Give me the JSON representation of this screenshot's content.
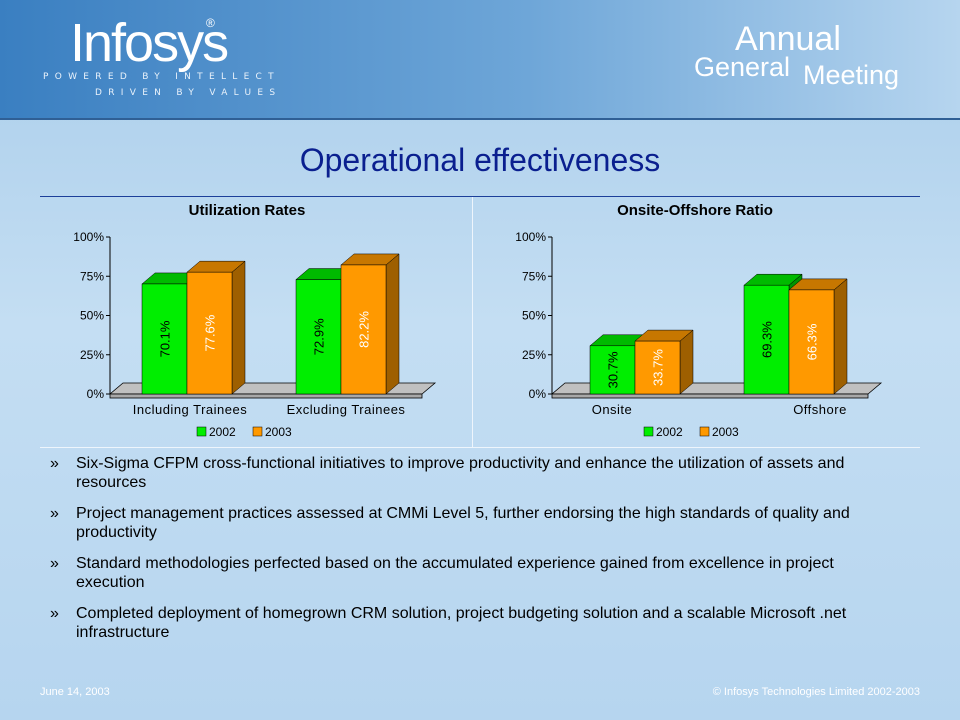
{
  "header": {
    "logo_text": "Infosys",
    "logo_mark": "®",
    "tagline_1": "POWERED BY INTELLECT",
    "tagline_2": "DRIVEN BY VALUES",
    "event_annual": "Annual",
    "event_general": "General",
    "event_meeting": "Meeting"
  },
  "title": "Operational effectiveness",
  "chart_data": [
    {
      "type": "bar",
      "title": "Utilization Rates",
      "categories": [
        "Including Trainees",
        "Excluding Trainees"
      ],
      "series": [
        {
          "name": "2002",
          "values": [
            70.1,
            72.9
          ],
          "labels": [
            "70.1%",
            "72.9%"
          ],
          "color": "#00ee00"
        },
        {
          "name": "2003",
          "values": [
            77.6,
            82.2
          ],
          "labels": [
            "77.6%",
            "82.2%"
          ],
          "color": "#ff9900"
        }
      ],
      "yticks": [
        "100%",
        "75%",
        "50%",
        "25%",
        "0%"
      ],
      "ylim": [
        0,
        100
      ],
      "legend": "bottom",
      "style": "3d"
    },
    {
      "type": "bar",
      "title": "Onsite-Offshore Ratio",
      "categories": [
        "Onsite",
        "Offshore"
      ],
      "series": [
        {
          "name": "2002",
          "values": [
            30.7,
            69.3
          ],
          "labels": [
            "30.7%",
            "69.3%"
          ],
          "color": "#00ee00"
        },
        {
          "name": "2003",
          "values": [
            33.7,
            66.3
          ],
          "labels": [
            "33.7%",
            "66.3%"
          ],
          "color": "#ff9900"
        }
      ],
      "yticks": [
        "100%",
        "75%",
        "50%",
        "25%",
        "0%"
      ],
      "ylim": [
        0,
        100
      ],
      "legend": "bottom",
      "style": "3d"
    }
  ],
  "bullets": {
    "marker": "»",
    "items": [
      "Six-Sigma CFPM cross-functional initiatives to improve productivity and enhance the utilization of assets and resources",
      "Project management practices assessed at CMMi Level 5, further endorsing the high standards of quality and productivity",
      "Standard methodologies perfected based on the accumulated experience gained from excellence in project execution",
      "Completed deployment of homegrown CRM solution, project budgeting solution and a scalable Microsoft .net infrastructure"
    ]
  },
  "footer": {
    "date": "June 14, 2003",
    "copyright": "© Infosys Technologies Limited 2002-2003"
  }
}
